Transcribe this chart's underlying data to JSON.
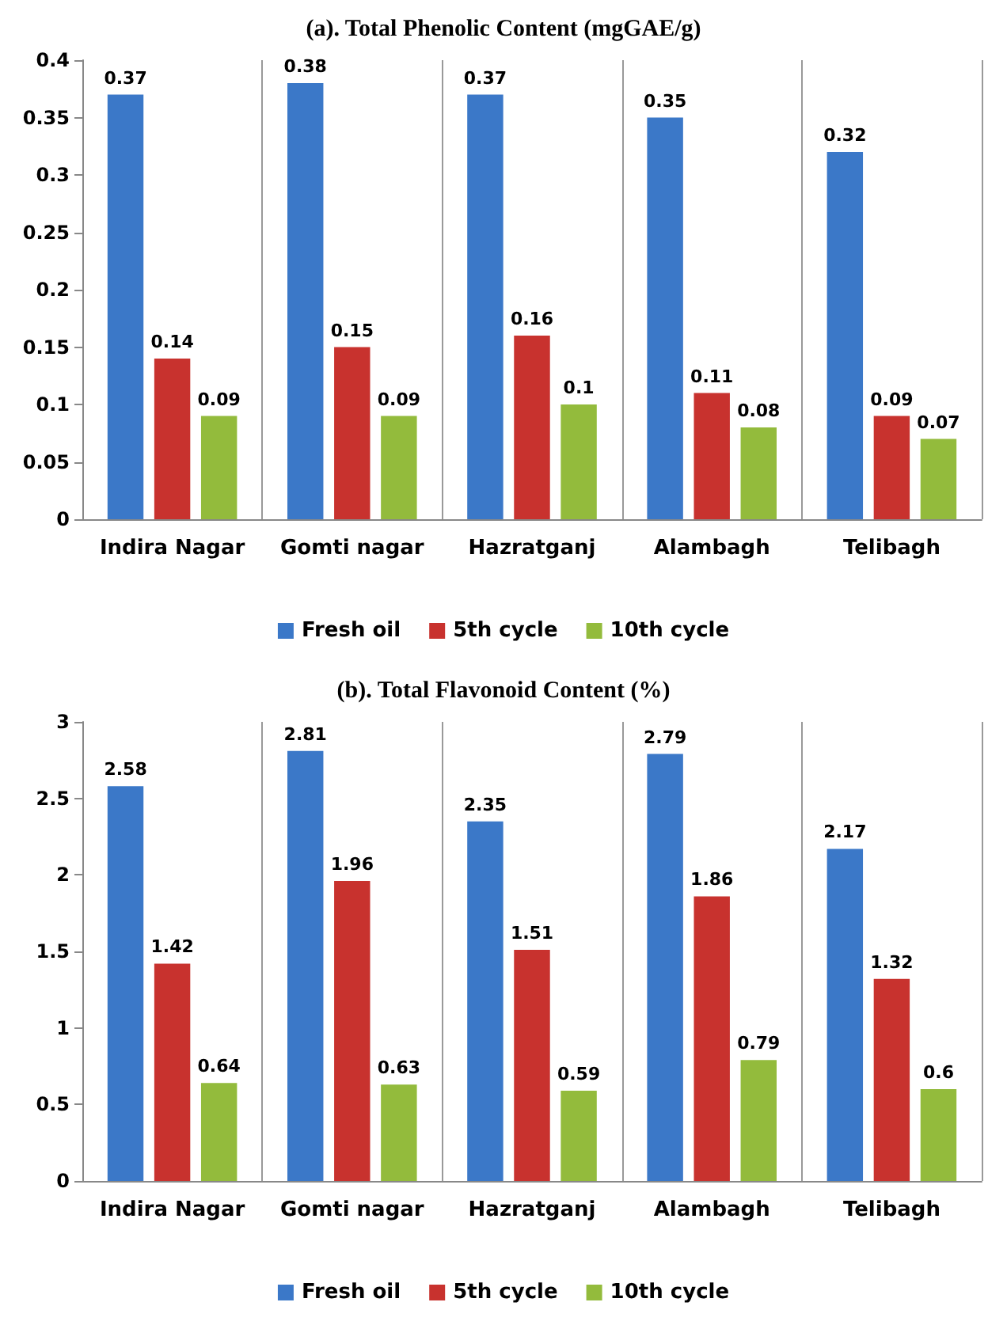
{
  "chart_data": [
    {
      "type": "bar",
      "title": "(a). Total Phenolic Content (mgGAE/g)",
      "categories": [
        "Indira Nagar",
        "Gomti nagar",
        "Hazratganj",
        "Alambagh",
        "Telibagh"
      ],
      "series": [
        {
          "name": "Fresh oil",
          "color": "#3b78c8",
          "values": [
            0.37,
            0.38,
            0.37,
            0.35,
            0.32
          ]
        },
        {
          "name": "5th cycle",
          "color": "#c8322e",
          "values": [
            0.14,
            0.15,
            0.16,
            0.11,
            0.09
          ]
        },
        {
          "name": "10th cycle",
          "color": "#93bb3c",
          "values": [
            0.09,
            0.09,
            0.1,
            0.08,
            0.07
          ]
        }
      ],
      "ylim": [
        0,
        0.4
      ],
      "yticks": [
        0,
        0.05,
        0.1,
        0.15,
        0.2,
        0.25,
        0.3,
        0.35,
        0.4
      ],
      "grid": "x",
      "legend": "bottom",
      "data_labels": true
    },
    {
      "type": "bar",
      "title": "(b). Total Flavonoid Content (%)",
      "categories": [
        "Indira Nagar",
        "Gomti nagar",
        "Hazratganj",
        "Alambagh",
        "Telibagh"
      ],
      "series": [
        {
          "name": "Fresh oil",
          "color": "#3b78c8",
          "values": [
            2.58,
            2.81,
            2.35,
            2.79,
            2.17
          ]
        },
        {
          "name": "5th cycle",
          "color": "#c8322e",
          "values": [
            1.42,
            1.96,
            1.51,
            1.86,
            1.32
          ]
        },
        {
          "name": "10th cycle",
          "color": "#93bb3c",
          "values": [
            0.64,
            0.63,
            0.59,
            0.79,
            0.6
          ]
        }
      ],
      "ylim": [
        0,
        3
      ],
      "yticks": [
        0,
        0.5,
        1,
        1.5,
        2,
        2.5,
        3
      ],
      "grid": "x",
      "legend": "bottom",
      "data_labels": true
    }
  ]
}
